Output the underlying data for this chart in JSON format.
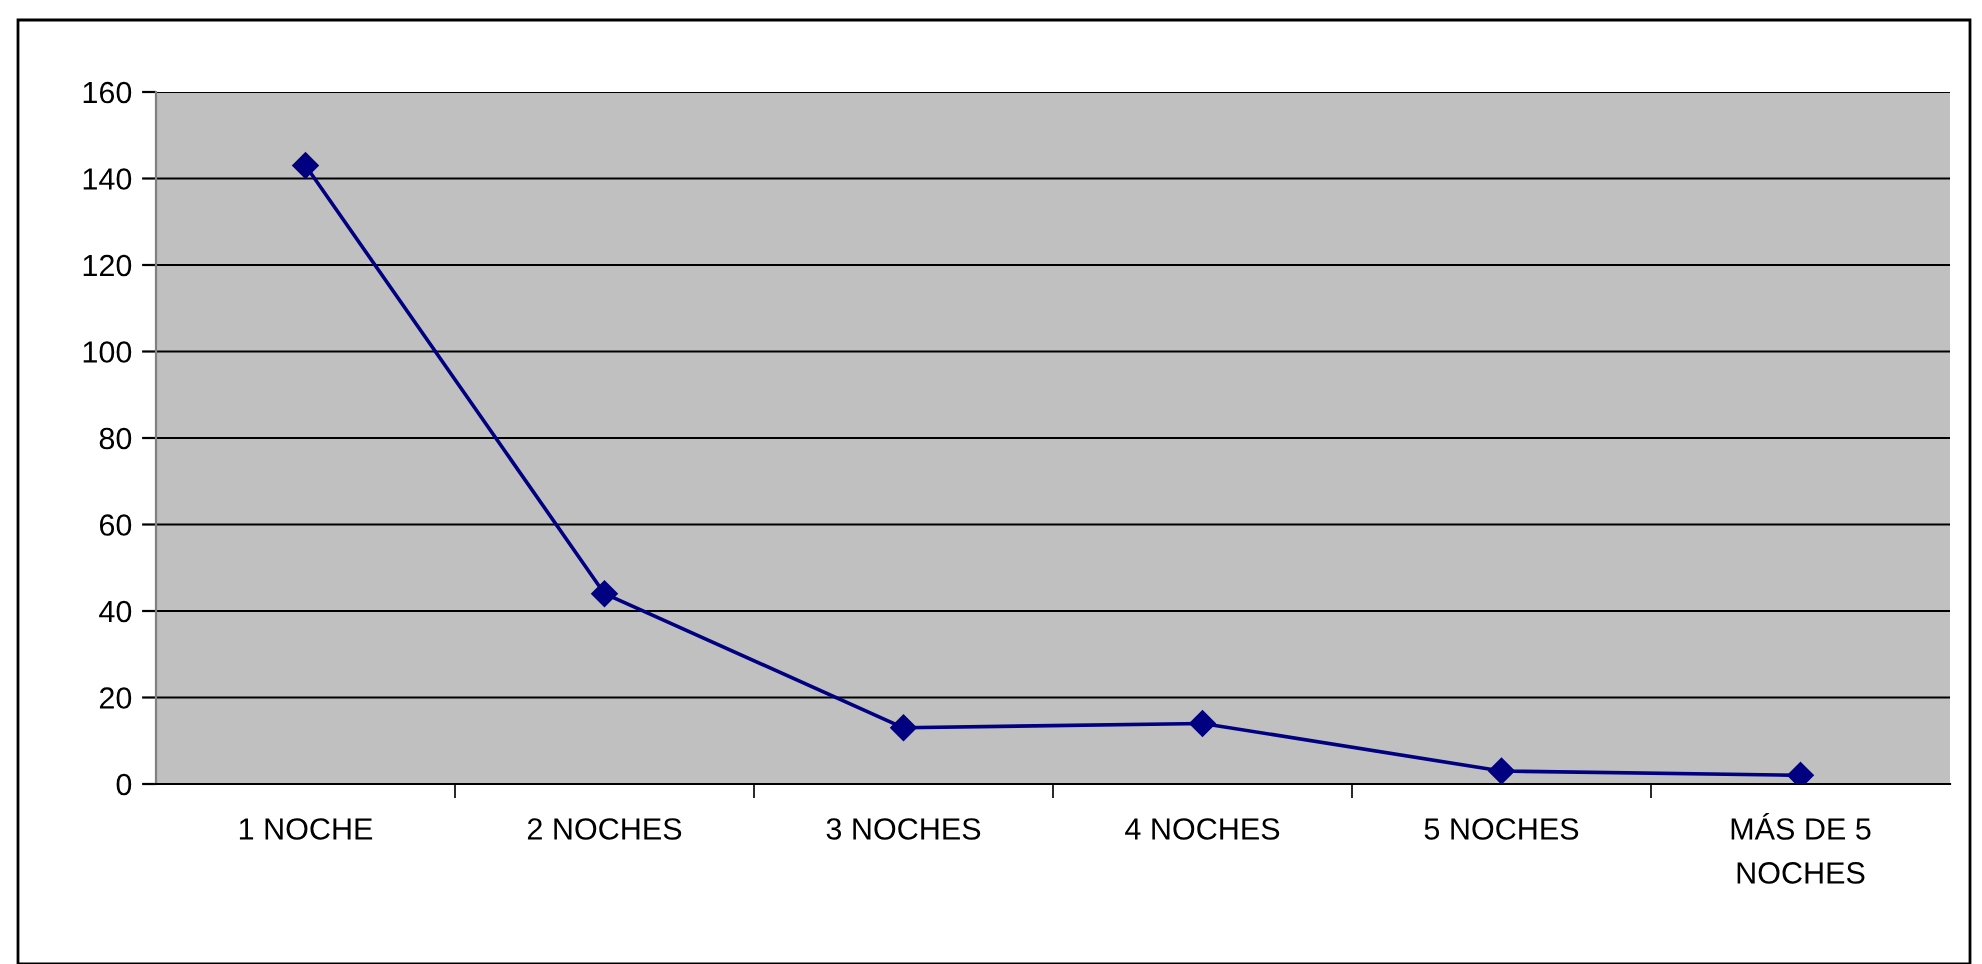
{
  "chart_data": {
    "type": "line",
    "categories": [
      "1 NOCHE",
      "2 NOCHES",
      "3 NOCHES",
      "4 NOCHES",
      "5 NOCHES",
      "MÁS DE 5 NOCHES"
    ],
    "series": [
      {
        "color": "#000080",
        "values": [
          143,
          44,
          13,
          14,
          3,
          2
        ]
      }
    ],
    "ylim": [
      0,
      160
    ],
    "yticks": [
      0,
      20,
      40,
      60,
      80,
      100,
      120,
      140,
      160
    ],
    "grid": "y",
    "legend": false,
    "marker": "diamond",
    "line_style": "solid"
  }
}
